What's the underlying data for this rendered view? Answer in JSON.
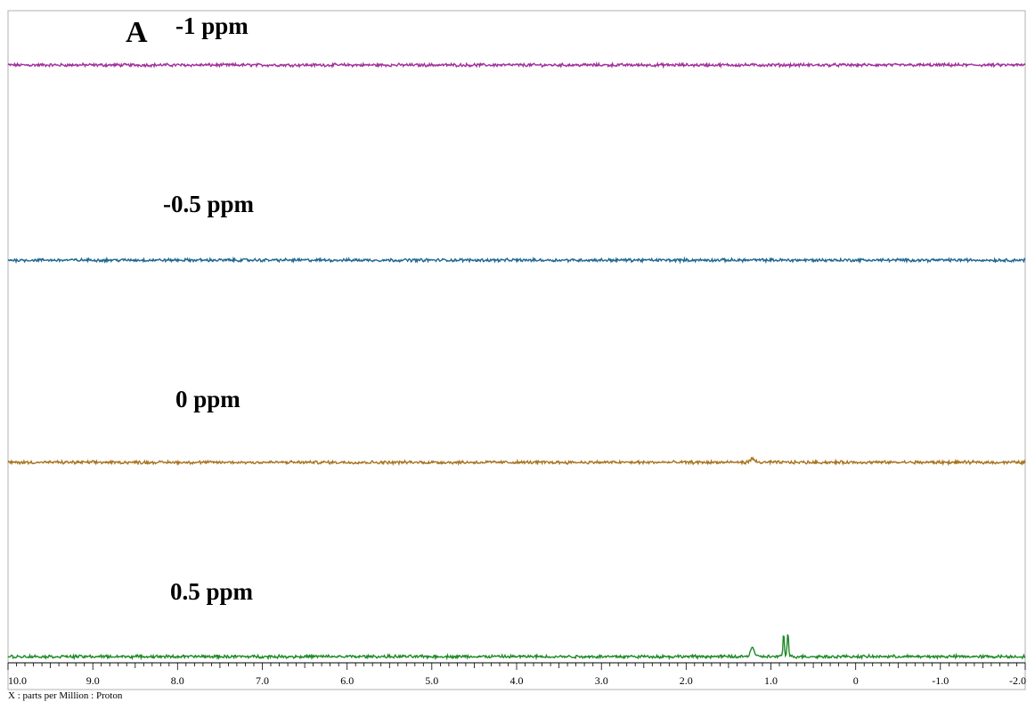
{
  "chart_data": {
    "type": "line",
    "panel_label": "A",
    "xlabel": "X : parts per Million : Proton",
    "xlim": [
      10.0,
      -2.0
    ],
    "x_reversed": true,
    "x_ticks": [
      10.0,
      9.0,
      8.0,
      7.0,
      6.0,
      5.0,
      4.0,
      3.0,
      2.0,
      1.0,
      0.0,
      -1.0,
      -2.0
    ],
    "x_tick_labels": [
      "10.0",
      "9.0",
      "8.0",
      "7.0",
      "6.0",
      "5.0",
      "4.0",
      "3.0",
      "2.0",
      "1.0",
      "0",
      "-1.0",
      "-2.0"
    ],
    "grid": false,
    "legend": "none",
    "series": [
      {
        "name": "-1 ppm",
        "color": "#a0309a",
        "noise_amplitude": 0.015,
        "peaks": []
      },
      {
        "name": "-0.5 ppm",
        "color": "#1e6890",
        "noise_amplitude": 0.015,
        "peaks": []
      },
      {
        "name": "0 ppm",
        "color": "#a8731e",
        "noise_amplitude": 0.015,
        "peaks": [
          {
            "x": 1.22,
            "height": 0.04,
            "width": 0.04
          }
        ]
      },
      {
        "name": "0.5 ppm",
        "color": "#1f8a28",
        "noise_amplitude": 0.015,
        "peaks": [
          {
            "x": 1.22,
            "height": 0.12,
            "width": 0.03
          },
          {
            "x": 0.85,
            "height": 0.28,
            "width": 0.012
          },
          {
            "x": 0.8,
            "height": 0.3,
            "width": 0.012
          }
        ]
      }
    ]
  }
}
